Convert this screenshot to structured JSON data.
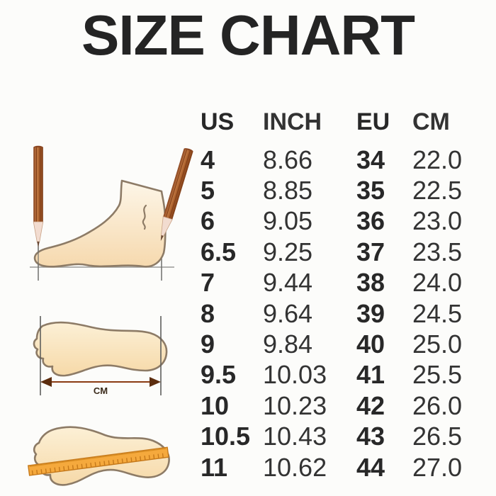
{
  "page": {
    "title": "SIZE CHART"
  },
  "table": {
    "headers": [
      "US",
      "INCH",
      "EU",
      "CM"
    ],
    "rows": [
      [
        "4",
        "8.66",
        "34",
        "22.0"
      ],
      [
        "5",
        "8.85",
        "35",
        "22.5"
      ],
      [
        "6",
        "9.05",
        "36",
        "23.0"
      ],
      [
        "6.5",
        "9.25",
        "37",
        "23.5"
      ],
      [
        "7",
        "9.44",
        "38",
        "24.0"
      ],
      [
        "8",
        "9.64",
        "39",
        "24.5"
      ],
      [
        "9",
        "9.84",
        "40",
        "25.0"
      ],
      [
        "9.5",
        "10.03",
        "41",
        "25.5"
      ],
      [
        "10",
        "10.23",
        "42",
        "26.0"
      ],
      [
        "10.5",
        "10.43",
        "43",
        "26.5"
      ],
      [
        "11",
        "10.62",
        "44",
        "27.0"
      ]
    ]
  },
  "illustrations": {
    "foot_length_unit_label": "CM"
  },
  "colors": {
    "text": "#282828",
    "background": "#fcfcfa",
    "foot_fill_light": "#fdf4e2",
    "foot_fill_dark": "#f6d9ae",
    "outline": "#8d7b66",
    "pencil_body": "#a95f2c",
    "pencil_stripe": "#7e3c16",
    "ruler_fill": "#f5a93d",
    "ruler_ticks": "#c5791b",
    "arrow": "#6b3413"
  },
  "chart_data": {
    "type": "table",
    "title": "SIZE CHART",
    "columns": [
      "US",
      "INCH",
      "EU",
      "CM"
    ],
    "rows": [
      [
        4,
        8.66,
        34,
        22.0
      ],
      [
        5,
        8.85,
        35,
        22.5
      ],
      [
        6,
        9.05,
        36,
        23.0
      ],
      [
        6.5,
        9.25,
        37,
        23.5
      ],
      [
        7,
        9.44,
        38,
        24.0
      ],
      [
        8,
        9.64,
        39,
        24.5
      ],
      [
        9,
        9.84,
        40,
        25.0
      ],
      [
        9.5,
        10.03,
        41,
        25.5
      ],
      [
        10,
        10.23,
        42,
        26.0
      ],
      [
        10.5,
        10.43,
        43,
        26.5
      ],
      [
        11,
        10.62,
        44,
        27.0
      ]
    ],
    "notes": "Shoe size conversion chart: US size, foot length in inches, EU size, foot length in cm"
  }
}
